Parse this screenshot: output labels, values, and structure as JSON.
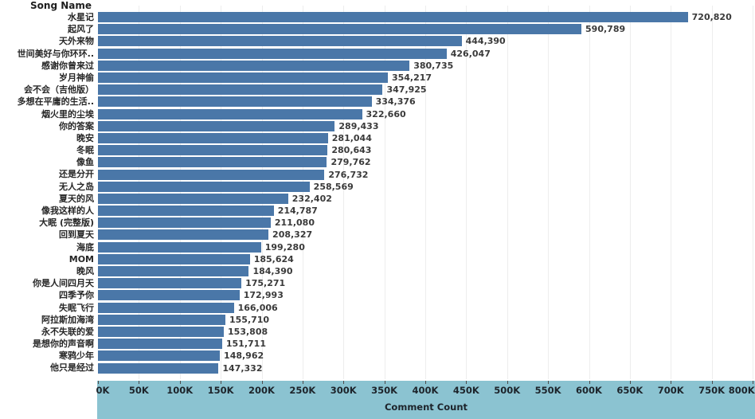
{
  "chart_data": {
    "type": "bar",
    "orientation": "horizontal",
    "title": "Song Name",
    "xlabel": "Comment Count",
    "categories": [
      "水星记",
      "起风了",
      "天外来物",
      "世间美好与你环环..",
      "感谢你曾来过",
      "岁月神偷",
      "会不会（吉他版）",
      "多想在平庸的生活..",
      "烟火里的尘埃",
      "你的答案",
      "晚安",
      "冬眠",
      "像鱼",
      "还是分开",
      "无人之岛",
      "夏天的风",
      "像我这样的人",
      "大眠 (完整版)",
      "回到夏天",
      "海底",
      "MOM",
      "晚风",
      "你是人间四月天",
      "四季予你",
      "失眠飞行",
      "阿拉斯加海湾",
      "永不失联的爱",
      "是想你的声音啊",
      "寒鸦少年",
      "他只是经过"
    ],
    "values": [
      720820,
      590789,
      444390,
      426047,
      380735,
      354217,
      347925,
      334376,
      322660,
      289433,
      281044,
      280643,
      279762,
      276732,
      258569,
      232402,
      214787,
      211080,
      208327,
      199280,
      185624,
      184390,
      175271,
      172993,
      166006,
      155710,
      153808,
      151711,
      148962,
      147332
    ],
    "value_labels": [
      "720,820",
      "590,789",
      "444,390",
      "426,047",
      "380,735",
      "354,217",
      "347,925",
      "334,376",
      "322,660",
      "289,433",
      "281,044",
      "280,643",
      "279,762",
      "276,732",
      "258,569",
      "232,402",
      "214,787",
      "211,080",
      "208,327",
      "199,280",
      "185,624",
      "184,390",
      "175,271",
      "172,993",
      "166,006",
      "155,710",
      "153,808",
      "151,711",
      "148,962",
      "147,332"
    ],
    "xlim": [
      0,
      800000
    ],
    "x_ticks": [
      "0K",
      "50K",
      "100K",
      "150K",
      "200K",
      "250K",
      "300K",
      "350K",
      "400K",
      "450K",
      "500K",
      "550K",
      "600K",
      "650K",
      "700K",
      "750K",
      "800K"
    ],
    "grid": true,
    "legend": "none",
    "colors": {
      "bar": "#4a77a8",
      "axis_band": "#8bc3d1",
      "gridline": "#ededed",
      "text": "#262626"
    }
  }
}
